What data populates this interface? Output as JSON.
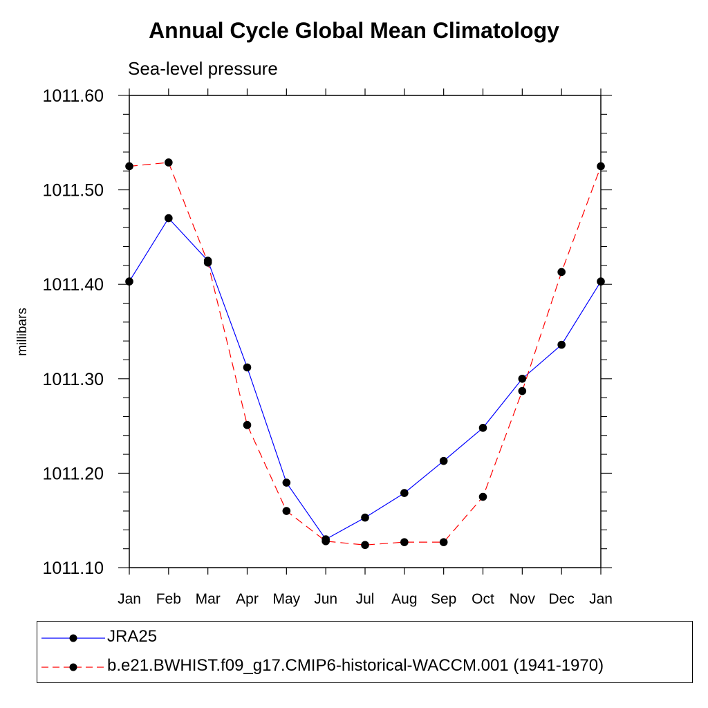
{
  "chart_data": {
    "type": "line",
    "title": "Annual Cycle Global Mean Climatology",
    "subtitle": "Sea-level pressure",
    "ylabel": "millibars",
    "xlabel": "",
    "categories": [
      "Jan",
      "Feb",
      "Mar",
      "Apr",
      "May",
      "Jun",
      "Jul",
      "Aug",
      "Sep",
      "Oct",
      "Nov",
      "Dec",
      "Jan"
    ],
    "ylim": [
      1011.1,
      1011.6
    ],
    "y_ticks": [
      "1011.10",
      "1011.20",
      "1011.30",
      "1011.40",
      "1011.50",
      "1011.60"
    ],
    "series": [
      {
        "name": "JRA25",
        "color": "#0000ff",
        "dash": "solid",
        "values": [
          1011.403,
          1011.47,
          1011.425,
          1011.312,
          1011.19,
          1011.13,
          1011.153,
          1011.179,
          1011.213,
          1011.248,
          1011.3,
          1011.336,
          1011.403
        ]
      },
      {
        "name": "b.e21.BWHIST.f09_g17.CMIP6-historical-WACCM.001 (1941-1970)",
        "color": "#ff0000",
        "dash": "dashed",
        "values": [
          1011.525,
          1011.529,
          1011.423,
          1011.251,
          1011.16,
          1011.128,
          1011.124,
          1011.127,
          1011.127,
          1011.175,
          1011.287,
          1011.413,
          1011.525
        ]
      }
    ],
    "marker": "filled-circle",
    "legend_position": "bottom",
    "grid": false
  }
}
